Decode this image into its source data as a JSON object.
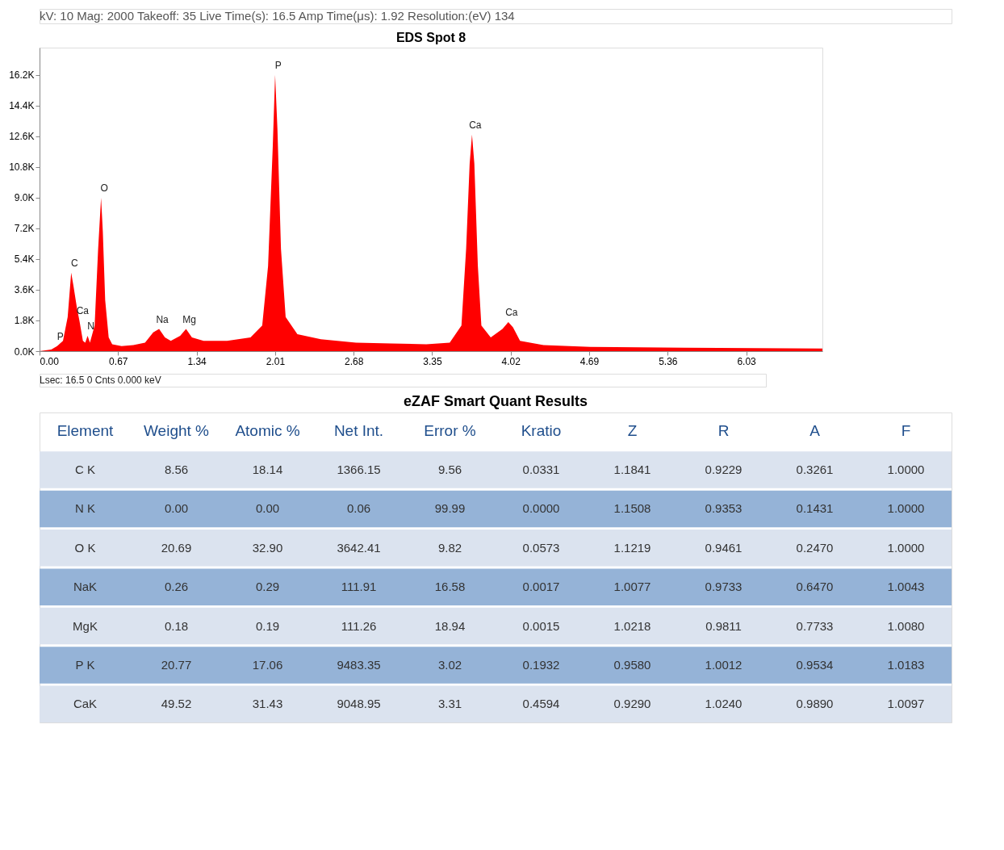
{
  "chart_data": [
    {
      "type": "area",
      "title": "EDS Spot 8",
      "color": "#ff0000",
      "x": [
        0.0,
        0.1,
        0.15,
        0.2,
        0.24,
        0.27,
        0.29,
        0.32,
        0.34,
        0.37,
        0.39,
        0.41,
        0.43,
        0.47,
        0.5,
        0.525,
        0.54,
        0.56,
        0.59,
        0.62,
        0.7,
        0.8,
        0.9,
        0.97,
        1.02,
        1.07,
        1.12,
        1.2,
        1.25,
        1.3,
        1.4,
        1.6,
        1.8,
        1.9,
        1.95,
        1.99,
        2.01,
        2.03,
        2.06,
        2.1,
        2.2,
        2.4,
        2.7,
        3.0,
        3.3,
        3.5,
        3.6,
        3.64,
        3.67,
        3.69,
        3.71,
        3.74,
        3.77,
        3.85,
        3.95,
        4.0,
        4.04,
        4.1,
        4.3,
        4.7,
        5.5,
        6.68
      ],
      "values": [
        0,
        100,
        300,
        600,
        2000,
        4600,
        3800,
        2500,
        1800,
        600,
        500,
        900,
        500,
        1500,
        6000,
        9000,
        7000,
        3000,
        800,
        400,
        300,
        350,
        500,
        1100,
        1300,
        800,
        600,
        900,
        1300,
        800,
        600,
        600,
        800,
        1500,
        5000,
        12000,
        16200,
        13000,
        6000,
        2000,
        1000,
        700,
        500,
        450,
        400,
        500,
        1500,
        6000,
        11000,
        12700,
        11000,
        5000,
        1500,
        800,
        1300,
        1700,
        1400,
        600,
        350,
        250,
        200,
        150
      ],
      "xlim": [
        0,
        6.68
      ],
      "ylim": [
        0,
        17800
      ],
      "xticks": [
        {
          "value": 0,
          "label": "0.00"
        },
        {
          "value": 0.67,
          "label": "0.67"
        },
        {
          "value": 1.34,
          "label": "1.34"
        },
        {
          "value": 2.01,
          "label": "2.01"
        },
        {
          "value": 2.68,
          "label": "2.68"
        },
        {
          "value": 3.35,
          "label": "3.35"
        },
        {
          "value": 4.02,
          "label": "4.02"
        },
        {
          "value": 4.69,
          "label": "4.69"
        },
        {
          "value": 5.36,
          "label": "5.36"
        },
        {
          "value": 6.03,
          "label": "6.03"
        }
      ],
      "yticks": [
        {
          "value": 0,
          "label": "0.0K"
        },
        {
          "value": 1800,
          "label": "1.8K"
        },
        {
          "value": 3600,
          "label": "3.6K"
        },
        {
          "value": 5400,
          "label": "5.4K"
        },
        {
          "value": 7200,
          "label": "7.2K"
        },
        {
          "value": 9000,
          "label": "9.0K"
        },
        {
          "value": 10800,
          "label": "10.8K"
        },
        {
          "value": 12600,
          "label": "12.6K"
        },
        {
          "value": 14400,
          "label": "14.4K"
        },
        {
          "value": 16200,
          "label": "16.2K"
        }
      ],
      "grid": false,
      "annotations": [
        "kV:   10            Mag:   2000            Takeoff:  35            Live Time(s):  16.5            Amp Time(μs):  1.92      Resolution:(eV) 134",
        "Lsec: 16.5 0 Cnts  0.000 keV",
        {
          "text": "P",
          "x": 0.15,
          "y": 300
        },
        {
          "text": "C",
          "x": 0.27,
          "y": 4600
        },
        {
          "text": "Ca",
          "x": 0.34,
          "y": 1800
        },
        {
          "text": "N",
          "x": 0.41,
          "y": 900
        },
        {
          "text": "O",
          "x": 0.525,
          "y": 9000
        },
        {
          "text": "Na",
          "x": 1.02,
          "y": 1300
        },
        {
          "text": "Mg",
          "x": 1.25,
          "y": 1300
        },
        {
          "text": "P",
          "x": 2.01,
          "y": 16200
        },
        {
          "text": "Ca",
          "x": 3.69,
          "y": 12700
        },
        {
          "text": "Ca",
          "x": 4.0,
          "y": 1700
        }
      ]
    },
    {
      "type": "other",
      "title": "eZAF Smart Quant Results",
      "categories": [
        "Element",
        "Weight %",
        "Atomic %",
        "Net Int.",
        "Error %",
        "Kratio",
        "Z",
        "R",
        "A",
        "F"
      ],
      "y_categories": [
        "C K",
        "N K",
        "O K",
        "NaK",
        "MgK",
        "P K",
        "CaK"
      ],
      "cell_labels": [
        [
          "8.56",
          "18.14",
          "1366.15",
          "9.56",
          "0.0331",
          "1.1841",
          "0.9229",
          "0.3261",
          "1.0000"
        ],
        [
          "0.00",
          "0.00",
          "0.06",
          "99.99",
          "0.0000",
          "1.1508",
          "0.9353",
          "0.1431",
          "1.0000"
        ],
        [
          "20.69",
          "32.90",
          "3642.41",
          "9.82",
          "0.0573",
          "1.1219",
          "0.9461",
          "0.2470",
          "1.0000"
        ],
        [
          "0.26",
          "0.29",
          "111.91",
          "16.58",
          "0.0017",
          "1.0077",
          "0.9733",
          "0.6470",
          "1.0043"
        ],
        [
          "0.18",
          "0.19",
          "111.26",
          "18.94",
          "0.0015",
          "1.0218",
          "0.9811",
          "0.7733",
          "1.0080"
        ],
        [
          "20.77",
          "17.06",
          "9483.35",
          "3.02",
          "0.1932",
          "0.9580",
          "1.0012",
          "0.9534",
          "1.0183"
        ],
        [
          "49.52",
          "31.43",
          "9048.95",
          "3.31",
          "0.4594",
          "0.9290",
          "1.0240",
          "0.9890",
          "1.0097"
        ]
      ]
    }
  ]
}
